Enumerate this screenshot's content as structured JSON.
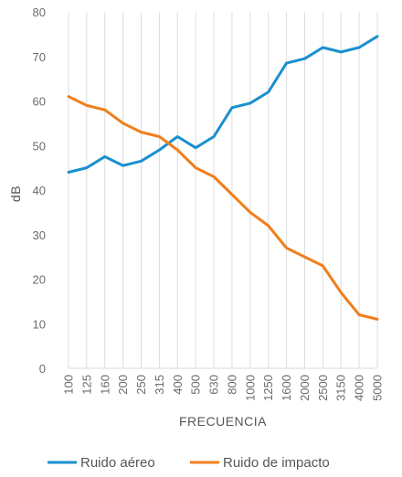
{
  "chart_data": {
    "type": "line",
    "xlabel": "FRECUENCIA",
    "ylabel": "dB",
    "ylim": [
      0,
      80
    ],
    "yticks": [
      0,
      10,
      20,
      30,
      40,
      50,
      60,
      70,
      80
    ],
    "grid": "vertical",
    "legend_position": "bottom",
    "categories": [
      "100",
      "125",
      "160",
      "200",
      "250",
      "315",
      "400",
      "500",
      "630",
      "800",
      "1000",
      "1250",
      "1600",
      "2000",
      "2500",
      "3150",
      "4000",
      "5000"
    ],
    "series": [
      {
        "name": "Ruido aéreo",
        "color": "#1a8fce",
        "values": [
          44,
          45,
          47.5,
          45.5,
          46.5,
          49,
          52,
          49.5,
          52,
          58.5,
          59.5,
          62,
          68.5,
          69.5,
          72,
          71,
          72,
          74.5
        ]
      },
      {
        "name": "Ruido de impacto",
        "color": "#f07f1d",
        "values": [
          61,
          59,
          58,
          55,
          53,
          52,
          49,
          45,
          43,
          39,
          35,
          32,
          27,
          25,
          23,
          17,
          12,
          11
        ]
      }
    ]
  }
}
